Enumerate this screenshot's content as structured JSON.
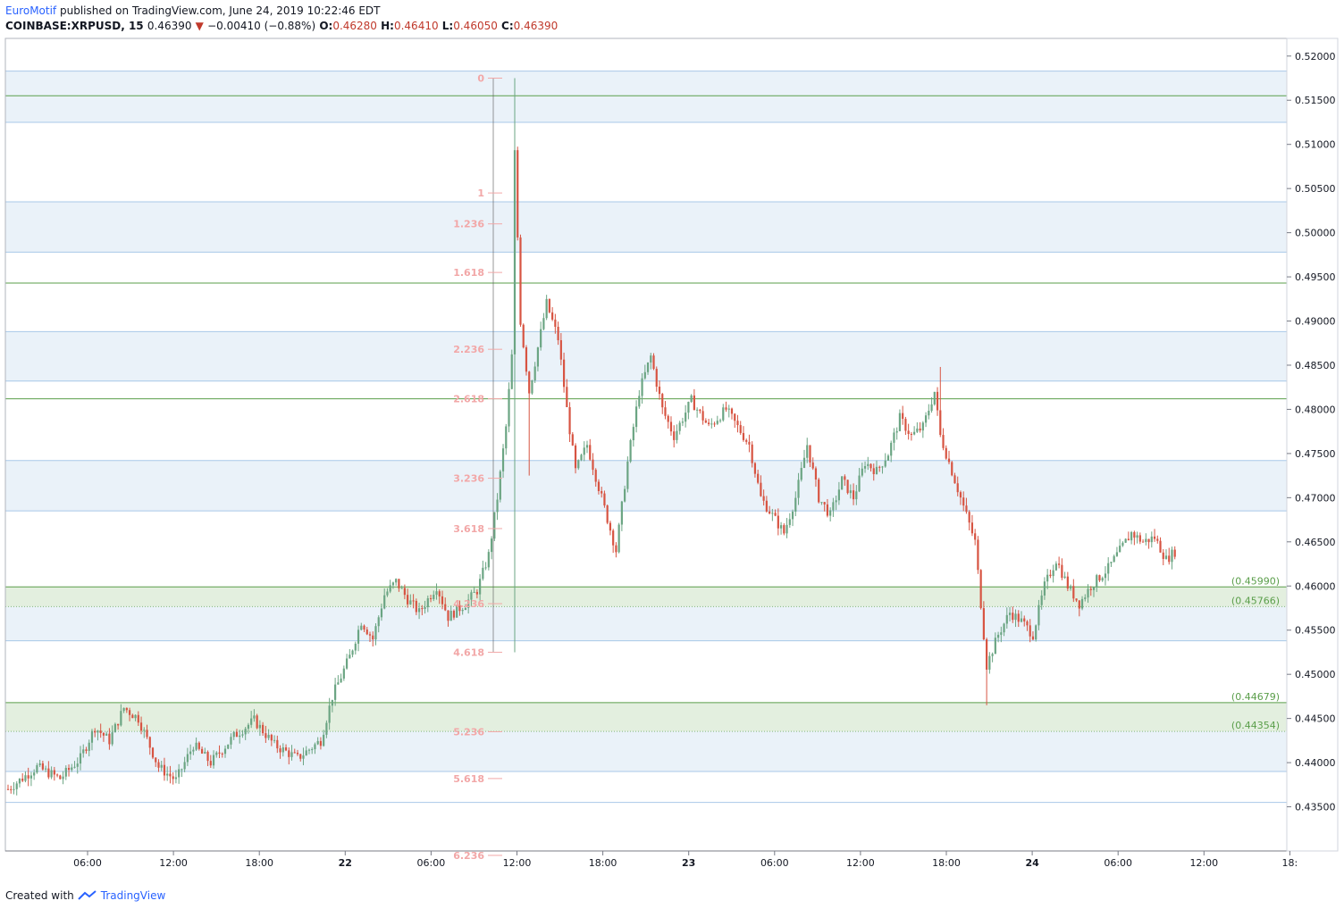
{
  "header": {
    "publisher": "EuroMotif",
    "published_text": "published on TradingView.com, June 24, 2019 10:22:46 EDT",
    "symbol": "COINBASE:XRPUSD, 15",
    "last": "0.46390",
    "change": "−0.00410 (−0.88%)",
    "open_label": "O:",
    "open": "0.46280",
    "high_label": "H:",
    "high": "0.46410",
    "low_label": "L:",
    "low": "0.46050",
    "close_label": "C:",
    "close": "0.46390"
  },
  "footer": {
    "created_with": "Created with",
    "brand": "TradingView"
  },
  "colors": {
    "up": "#6ba583",
    "down": "#d75442",
    "fib_text": "#f2a7a7",
    "band_line": "#a8c8e8",
    "band_fill": "#eaf2f9",
    "level_line": "#5a9e4a",
    "level_text": "#5a9e4a",
    "level_fill": "#e3efdf"
  },
  "chart_data": {
    "type": "candlestick",
    "y_axis": {
      "min": 0.43,
      "max": 0.522,
      "ticks": [
        "0.43500",
        "0.44000",
        "0.44500",
        "0.45000",
        "0.45500",
        "0.46000",
        "0.46500",
        "0.47000",
        "0.47500",
        "0.48000",
        "0.48500",
        "0.49000",
        "0.49500",
        "0.50000",
        "0.50500",
        "0.51000",
        "0.51500",
        "0.52000"
      ]
    },
    "x_axis": {
      "ticks": [
        "06:00",
        "12:00",
        "18:00",
        "22",
        "06:00",
        "12:00",
        "18:00",
        "23",
        "06:00",
        "12:00",
        "18:00",
        "24",
        "06:00",
        "12:00",
        "18:"
      ],
      "bold_ticks": [
        "22",
        "23",
        "24"
      ]
    },
    "fib_labels": [
      {
        "label": "0",
        "price": 0.5175
      },
      {
        "label": "1",
        "price": 0.5045
      },
      {
        "label": "1.236",
        "price": 0.501
      },
      {
        "label": "1.618",
        "price": 0.4955
      },
      {
        "label": "2.236",
        "price": 0.4868
      },
      {
        "label": "2.618",
        "price": 0.4812
      },
      {
        "label": "3.236",
        "price": 0.4722
      },
      {
        "label": "3.618",
        "price": 0.4665
      },
      {
        "label": "4.236",
        "price": 0.458
      },
      {
        "label": "4.618",
        "price": 0.4525
      },
      {
        "label": "5.236",
        "price": 0.4435
      },
      {
        "label": "5.618",
        "price": 0.4382
      },
      {
        "label": "6.236",
        "price": 0.4295
      }
    ],
    "blue_band_lines": [
      0.5183,
      0.5125,
      0.5035,
      0.4978,
      0.4888,
      0.4832,
      0.4742,
      0.4685,
      0.4595,
      0.4538,
      0.4448,
      0.439,
      0.4355
    ],
    "green_lines": [
      0.5155,
      0.4943,
      0.4812
    ],
    "levels": [
      {
        "label": "(0.45990)",
        "price": 0.4599,
        "style": "solid"
      },
      {
        "label": "(0.45766)",
        "price": 0.45766,
        "style": "dotted"
      },
      {
        "label": "(0.44679)",
        "price": 0.44679,
        "style": "solid"
      },
      {
        "label": "(0.44354)",
        "price": 0.44354,
        "style": "dotted"
      }
    ],
    "series": [
      {
        "name": "XRPUSD",
        "anchors": [
          [
            0,
            0.437
          ],
          [
            10,
            0.4395
          ],
          [
            18,
            0.4382
          ],
          [
            25,
            0.4405
          ],
          [
            30,
            0.444
          ],
          [
            35,
            0.4425
          ],
          [
            40,
            0.4462
          ],
          [
            45,
            0.445
          ],
          [
            52,
            0.4395
          ],
          [
            58,
            0.438
          ],
          [
            64,
            0.442
          ],
          [
            70,
            0.44
          ],
          [
            78,
            0.443
          ],
          [
            85,
            0.4448
          ],
          [
            92,
            0.442
          ],
          [
            100,
            0.4405
          ],
          [
            108,
            0.4425
          ],
          [
            112,
            0.4475
          ],
          [
            118,
            0.452
          ],
          [
            122,
            0.456
          ],
          [
            126,
            0.454
          ],
          [
            130,
            0.459
          ],
          [
            134,
            0.4605
          ],
          [
            138,
            0.4585
          ],
          [
            142,
            0.457
          ],
          [
            148,
            0.46
          ],
          [
            152,
            0.4565
          ],
          [
            158,
            0.458
          ],
          [
            162,
            0.4595
          ],
          [
            166,
            0.4635
          ],
          [
            169,
            0.47
          ],
          [
            172,
            0.478
          ],
          [
            174,
            0.486
          ],
          [
            175,
            0.509
          ],
          [
            177,
            0.49
          ],
          [
            180,
            0.482
          ],
          [
            183,
            0.487
          ],
          [
            186,
            0.492
          ],
          [
            190,
            0.488
          ],
          [
            193,
            0.48
          ],
          [
            196,
            0.473
          ],
          [
            200,
            0.476
          ],
          [
            205,
            0.47
          ],
          [
            210,
            0.464
          ],
          [
            214,
            0.474
          ],
          [
            218,
            0.482
          ],
          [
            222,
            0.486
          ],
          [
            226,
            0.48
          ],
          [
            230,
            0.477
          ],
          [
            236,
            0.481
          ],
          [
            242,
            0.478
          ],
          [
            248,
            0.48
          ],
          [
            252,
            0.478
          ],
          [
            256,
            0.476
          ],
          [
            260,
            0.47
          ],
          [
            264,
            0.468
          ],
          [
            268,
            0.466
          ],
          [
            272,
            0.47
          ],
          [
            276,
            0.476
          ],
          [
            280,
            0.47
          ],
          [
            284,
            0.468
          ],
          [
            288,
            0.472
          ],
          [
            292,
            0.47
          ],
          [
            296,
            0.474
          ],
          [
            300,
            0.473
          ],
          [
            304,
            0.475
          ],
          [
            308,
            0.479
          ],
          [
            312,
            0.477
          ],
          [
            316,
            0.478
          ],
          [
            320,
            0.482
          ],
          [
            322,
            0.477
          ],
          [
            325,
            0.474
          ],
          [
            330,
            0.469
          ],
          [
            334,
            0.465
          ],
          [
            336,
            0.458
          ],
          [
            338,
            0.451
          ],
          [
            342,
            0.4545
          ],
          [
            346,
            0.457
          ],
          [
            350,
            0.456
          ],
          [
            354,
            0.4545
          ],
          [
            358,
            0.46
          ],
          [
            362,
            0.463
          ],
          [
            366,
            0.46
          ],
          [
            370,
            0.458
          ],
          [
            374,
            0.46
          ],
          [
            380,
            0.462
          ],
          [
            384,
            0.464
          ],
          [
            388,
            0.466
          ],
          [
            392,
            0.465
          ],
          [
            396,
            0.4655
          ],
          [
            400,
            0.463
          ],
          [
            403,
            0.4639
          ]
        ]
      }
    ]
  }
}
